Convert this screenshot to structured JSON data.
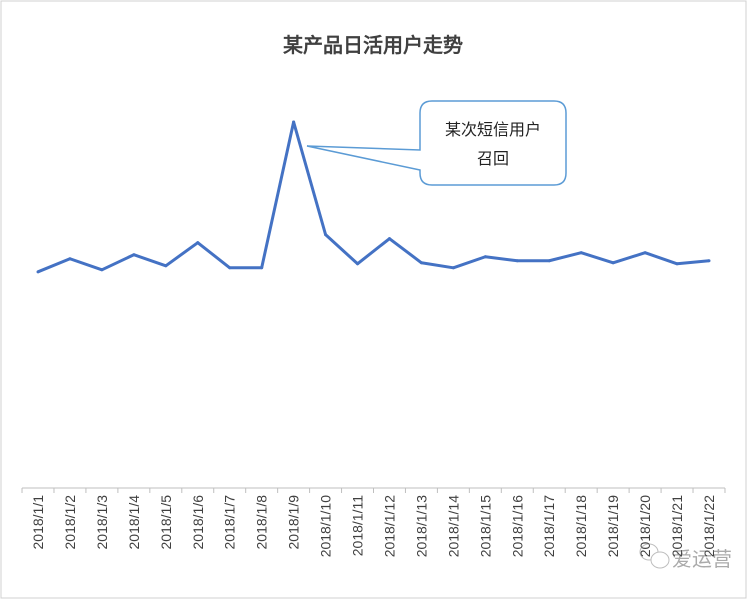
{
  "chart_data": {
    "type": "line",
    "title": "某产品日活用户走势",
    "xlabel": "",
    "ylabel": "",
    "categories": [
      "2018/1/1",
      "2018/1/2",
      "2018/1/3",
      "2018/1/4",
      "2018/1/5",
      "2018/1/6",
      "2018/1/7",
      "2018/1/8",
      "2018/1/9",
      "2018/1/10",
      "2018/1/11",
      "2018/1/12",
      "2018/1/13",
      "2018/1/14",
      "2018/1/15",
      "2018/1/16",
      "2018/1/17",
      "2018/1/18",
      "2018/1/19",
      "2018/1/20",
      "2018/1/21",
      "2018/1/22"
    ],
    "series": [
      {
        "values": [
          215,
          228,
          217,
          232,
          221,
          244,
          219,
          219,
          364,
          252,
          223,
          248,
          224,
          219,
          230,
          226,
          226,
          234,
          224,
          234,
          223,
          226
        ],
        "color": "#4472C4"
      }
    ],
    "ylim": [
      0,
      400
    ],
    "y_axis_visible": false,
    "grid": false,
    "legend": "none",
    "annotations": [
      {
        "text_lines": [
          "某次短信用户",
          "召回"
        ],
        "target": "2018/1/9",
        "border_color": "#5B9BD5"
      }
    ]
  },
  "watermark": {
    "text": "爱运营",
    "icon": "wechat-icon"
  }
}
